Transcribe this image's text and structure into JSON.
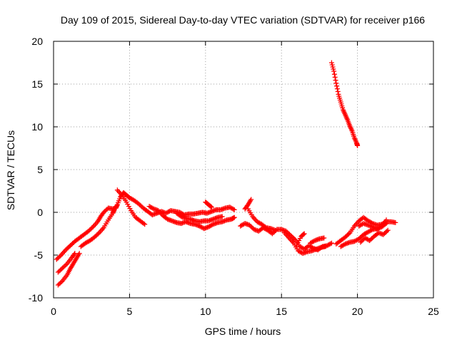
{
  "chart_data": {
    "type": "scatter",
    "title": "Day 109 of 2015, Sidereal Day-to-day VTEC variation (SDTVAR) for receiver p166",
    "xlabel": "GPS time / hours",
    "ylabel": "SDTVAR / TECUs",
    "xlim": [
      0,
      25
    ],
    "ylim": [
      -10,
      20
    ],
    "xticks": [
      0,
      5,
      10,
      15,
      20,
      25
    ],
    "yticks": [
      -10,
      -5,
      0,
      5,
      10,
      15,
      20
    ],
    "grid": true,
    "marker": "+",
    "color": "#ff0000",
    "series": [
      {
        "name": "track-a",
        "points": [
          [
            0.2,
            -5.5
          ],
          [
            0.5,
            -5.0
          ],
          [
            0.8,
            -4.4
          ],
          [
            1.1,
            -3.9
          ],
          [
            1.4,
            -3.4
          ],
          [
            1.7,
            -3.0
          ],
          [
            2.0,
            -2.6
          ],
          [
            2.3,
            -2.2
          ],
          [
            2.6,
            -1.7
          ],
          [
            2.9,
            -1.1
          ],
          [
            3.1,
            -0.5
          ],
          [
            3.3,
            0.0
          ],
          [
            3.6,
            0.5
          ],
          [
            3.9,
            0.4
          ],
          [
            4.1,
            0.5
          ],
          [
            4.2,
            0.9
          ],
          [
            4.4,
            1.8
          ],
          [
            4.6,
            2.3
          ],
          [
            4.8,
            2.0
          ],
          [
            5.0,
            1.7
          ],
          [
            5.3,
            1.4
          ],
          [
            5.6,
            1.0
          ],
          [
            5.9,
            0.5
          ],
          [
            6.2,
            0.1
          ],
          [
            6.5,
            -0.3
          ],
          [
            6.8,
            -0.1
          ],
          [
            7.1,
            0.1
          ],
          [
            7.4,
            -0.1
          ],
          [
            7.7,
            0.2
          ],
          [
            8.0,
            0.1
          ],
          [
            8.3,
            0.0
          ],
          [
            8.6,
            -0.3
          ],
          [
            8.9,
            -0.2
          ],
          [
            9.2,
            -0.2
          ],
          [
            9.5,
            -0.1
          ],
          [
            9.8,
            0.0
          ],
          [
            10.1,
            -0.1
          ],
          [
            10.4,
            0.1
          ],
          [
            10.7,
            0.3
          ],
          [
            11.0,
            0.3
          ],
          [
            11.3,
            0.5
          ],
          [
            11.6,
            0.6
          ],
          [
            11.9,
            0.3
          ]
        ]
      },
      {
        "name": "track-b",
        "points": [
          [
            0.3,
            -7.0
          ],
          [
            0.6,
            -6.5
          ],
          [
            0.9,
            -6.0
          ],
          [
            1.2,
            -5.3
          ],
          [
            1.4,
            -4.8
          ]
        ]
      },
      {
        "name": "track-c",
        "points": [
          [
            0.3,
            -8.5
          ],
          [
            0.6,
            -8.0
          ],
          [
            0.9,
            -7.3
          ],
          [
            1.1,
            -6.6
          ],
          [
            1.3,
            -6.0
          ],
          [
            1.5,
            -5.4
          ],
          [
            1.7,
            -4.8
          ]
        ]
      },
      {
        "name": "track-d",
        "points": [
          [
            1.8,
            -4.0
          ],
          [
            2.1,
            -3.6
          ],
          [
            2.4,
            -3.3
          ],
          [
            2.7,
            -2.9
          ],
          [
            3.0,
            -2.4
          ],
          [
            3.3,
            -1.8
          ],
          [
            3.6,
            -0.9
          ],
          [
            3.9,
            -0.1
          ],
          [
            4.0,
            0.3
          ]
        ]
      },
      {
        "name": "track-e",
        "points": [
          [
            4.2,
            2.6
          ],
          [
            4.5,
            2.0
          ],
          [
            4.8,
            1.2
          ],
          [
            5.1,
            0.2
          ],
          [
            5.4,
            -0.6
          ],
          [
            5.7,
            -1.0
          ],
          [
            6.0,
            -1.4
          ]
        ]
      },
      {
        "name": "track-f",
        "points": [
          [
            6.3,
            0.7
          ],
          [
            6.6,
            0.4
          ],
          [
            6.9,
            0.2
          ],
          [
            7.2,
            -0.4
          ],
          [
            7.5,
            -0.8
          ],
          [
            7.8,
            -1.0
          ],
          [
            8.1,
            -1.2
          ],
          [
            8.4,
            -1.3
          ],
          [
            8.7,
            -1.1
          ],
          [
            9.0,
            -1.3
          ],
          [
            9.3,
            -1.4
          ],
          [
            9.6,
            -1.6
          ],
          [
            9.9,
            -1.9
          ],
          [
            10.2,
            -1.7
          ],
          [
            10.5,
            -1.4
          ],
          [
            10.8,
            -1.2
          ],
          [
            11.1,
            -1.1
          ],
          [
            11.4,
            -0.9
          ],
          [
            11.7,
            -0.8
          ],
          [
            11.9,
            -0.6
          ]
        ]
      },
      {
        "name": "track-g",
        "points": [
          [
            8.1,
            -0.1
          ],
          [
            8.4,
            -0.5
          ],
          [
            8.7,
            -0.7
          ],
          [
            9.0,
            -0.8
          ],
          [
            9.3,
            -1.0
          ],
          [
            9.6,
            -1.1
          ],
          [
            9.9,
            -1.0
          ],
          [
            10.2,
            -1.0
          ],
          [
            10.5,
            -0.8
          ],
          [
            10.8,
            -0.6
          ],
          [
            11.1,
            -0.5
          ]
        ]
      },
      {
        "name": "track-h",
        "points": [
          [
            10.0,
            1.2
          ],
          [
            10.2,
            0.9
          ],
          [
            10.4,
            0.6
          ]
        ]
      },
      {
        "name": "track-i",
        "points": [
          [
            12.6,
            0.4
          ],
          [
            12.8,
            0.9
          ],
          [
            13.0,
            1.5
          ]
        ]
      },
      {
        "name": "track-j",
        "points": [
          [
            12.3,
            -1.6
          ],
          [
            12.6,
            -1.3
          ],
          [
            12.9,
            -1.5
          ],
          [
            13.2,
            -2.0
          ],
          [
            13.5,
            -2.2
          ],
          [
            13.8,
            -1.8
          ],
          [
            14.1,
            -2.1
          ],
          [
            14.4,
            -2.5
          ],
          [
            14.7,
            -2.0
          ],
          [
            15.0,
            -2.0
          ],
          [
            15.3,
            -2.2
          ],
          [
            15.6,
            -2.7
          ],
          [
            15.9,
            -3.2
          ],
          [
            16.2,
            -4.0
          ],
          [
            16.5,
            -4.3
          ],
          [
            16.8,
            -3.9
          ],
          [
            17.1,
            -4.2
          ],
          [
            17.4,
            -4.4
          ],
          [
            17.7,
            -4.0
          ],
          [
            18.0,
            -3.9
          ],
          [
            18.3,
            -3.6
          ]
        ]
      },
      {
        "name": "track-k",
        "points": [
          [
            12.8,
            0.4
          ],
          [
            13.1,
            -0.5
          ],
          [
            13.4,
            -1.1
          ],
          [
            13.7,
            -1.4
          ],
          [
            14.0,
            -1.8
          ],
          [
            14.3,
            -1.9
          ],
          [
            14.6,
            -2.1
          ]
        ]
      },
      {
        "name": "track-l",
        "points": [
          [
            15.2,
            -2.4
          ],
          [
            15.5,
            -3.0
          ],
          [
            15.8,
            -3.6
          ],
          [
            16.1,
            -4.5
          ],
          [
            16.4,
            -4.8
          ],
          [
            16.7,
            -4.6
          ],
          [
            17.0,
            -4.5
          ],
          [
            17.3,
            -4.3
          ],
          [
            17.6,
            -4.1
          ],
          [
            17.9,
            -4.0
          ]
        ]
      },
      {
        "name": "track-m",
        "points": [
          [
            16.0,
            -3.8
          ],
          [
            16.3,
            -2.8
          ],
          [
            16.5,
            -2.5
          ]
        ]
      },
      {
        "name": "track-n",
        "points": [
          [
            16.9,
            -3.6
          ],
          [
            17.2,
            -3.3
          ],
          [
            17.5,
            -3.1
          ],
          [
            17.8,
            -3.0
          ]
        ]
      },
      {
        "name": "track-o",
        "points": [
          [
            18.6,
            -3.7
          ],
          [
            18.9,
            -3.3
          ],
          [
            19.2,
            -2.9
          ],
          [
            19.5,
            -2.4
          ],
          [
            19.8,
            -1.6
          ],
          [
            20.1,
            -1.0
          ],
          [
            20.4,
            -0.6
          ],
          [
            20.7,
            -1.0
          ],
          [
            21.0,
            -1.3
          ],
          [
            21.3,
            -1.5
          ],
          [
            21.6,
            -1.4
          ],
          [
            21.9,
            -1.1
          ],
          [
            22.2,
            -1.1
          ],
          [
            22.5,
            -1.2
          ]
        ]
      },
      {
        "name": "track-p",
        "points": [
          [
            18.9,
            -4.0
          ],
          [
            19.2,
            -3.7
          ],
          [
            19.5,
            -3.5
          ],
          [
            19.8,
            -3.4
          ],
          [
            20.1,
            -3.1
          ],
          [
            20.4,
            -2.6
          ],
          [
            20.7,
            -2.3
          ],
          [
            21.0,
            -2.0
          ],
          [
            21.3,
            -1.9
          ],
          [
            21.6,
            -1.7
          ],
          [
            21.9,
            -1.3
          ]
        ]
      },
      {
        "name": "track-q",
        "points": [
          [
            20.1,
            -1.6
          ],
          [
            20.4,
            -1.3
          ],
          [
            20.7,
            -1.5
          ],
          [
            21.0,
            -1.7
          ],
          [
            21.3,
            -2.0
          ],
          [
            21.6,
            -1.6
          ],
          [
            21.9,
            -0.9
          ]
        ]
      },
      {
        "name": "track-r",
        "points": [
          [
            20.2,
            -3.5
          ],
          [
            20.5,
            -3.0
          ],
          [
            20.8,
            -3.3
          ],
          [
            21.1,
            -2.8
          ],
          [
            21.4,
            -2.4
          ],
          [
            21.7,
            -2.6
          ],
          [
            22.0,
            -2.1
          ]
        ]
      },
      {
        "name": "track-s",
        "points": [
          [
            18.3,
            17.5
          ],
          [
            18.45,
            16.5
          ],
          [
            18.6,
            15.1
          ],
          [
            18.75,
            13.8
          ],
          [
            18.9,
            12.9
          ],
          [
            19.05,
            12.0
          ],
          [
            19.2,
            11.4
          ],
          [
            19.35,
            10.8
          ],
          [
            19.5,
            10.1
          ],
          [
            19.65,
            9.5
          ],
          [
            19.8,
            8.7
          ],
          [
            19.95,
            8.1
          ],
          [
            20.0,
            7.8
          ]
        ]
      }
    ]
  }
}
